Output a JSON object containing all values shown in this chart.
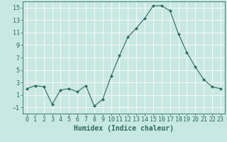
{
  "x": [
    0,
    1,
    2,
    3,
    4,
    5,
    6,
    7,
    8,
    9,
    10,
    11,
    12,
    13,
    14,
    15,
    16,
    17,
    18,
    19,
    20,
    21,
    22,
    23
  ],
  "y": [
    2,
    2.5,
    2.3,
    -0.5,
    1.8,
    2.0,
    1.5,
    2.5,
    -0.8,
    0.3,
    4.0,
    7.3,
    10.3,
    11.7,
    13.3,
    15.3,
    15.3,
    14.5,
    10.8,
    7.8,
    5.5,
    3.5,
    2.3,
    2.0
  ],
  "line_color": "#2d6b5e",
  "marker": "D",
  "marker_size": 2,
  "bg_color": "#c8e8e4",
  "grid_color": "#ffffff",
  "xlabel": "Humidex (Indice chaleur)",
  "ylabel": "",
  "ylim": [
    -2,
    16
  ],
  "yticks": [
    -1,
    1,
    3,
    5,
    7,
    9,
    11,
    13,
    15
  ],
  "xticks": [
    0,
    1,
    2,
    3,
    4,
    5,
    6,
    7,
    8,
    9,
    10,
    11,
    12,
    13,
    14,
    15,
    16,
    17,
    18,
    19,
    20,
    21,
    22,
    23
  ],
  "tick_color": "#2d6b5e",
  "xlabel_fontsize": 7,
  "tick_fontsize": 6
}
